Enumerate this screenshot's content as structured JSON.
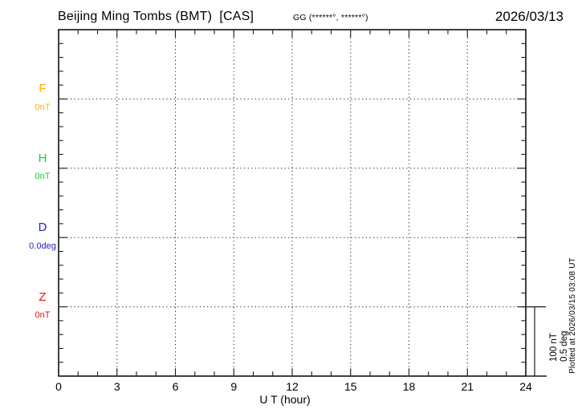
{
  "header": {
    "title": "Beijing Ming Tombs (BMT)  [CAS]",
    "coordinates": "GG (******°, ******°)",
    "date": "2026/03/13"
  },
  "chart_data": {
    "type": "line",
    "title": "Beijing Ming Tombs (BMT)  [CAS]",
    "date": "2026/03/13",
    "xlabel": "U T (hour)",
    "xlim": [
      0,
      24
    ],
    "x_major_ticks": [
      0,
      3,
      6,
      9,
      12,
      15,
      18,
      21,
      24
    ],
    "x_minor_step_hours": 1,
    "grid": {
      "vertical_dotted_every_hours": 3,
      "horizontal_dotted_at_channel_baselines": true
    },
    "channels": [
      {
        "name": "F",
        "baseline_label": "0nT",
        "color": "#FFAE00",
        "values": []
      },
      {
        "name": "H",
        "baseline_label": "0nT",
        "color": "#00DD22",
        "values": []
      },
      {
        "name": "D",
        "baseline_label": "0.0deg",
        "color": "#2222CC",
        "values": []
      },
      {
        "name": "Z",
        "baseline_label": "0nT",
        "color": "#EE1111",
        "values": []
      }
    ],
    "data_plotted": false,
    "scale_bar": {
      "labels": [
        "100 nT",
        "0.5 deg"
      ]
    },
    "plotted_at": "Plotted at 2026/03/15 03:08 UT"
  }
}
